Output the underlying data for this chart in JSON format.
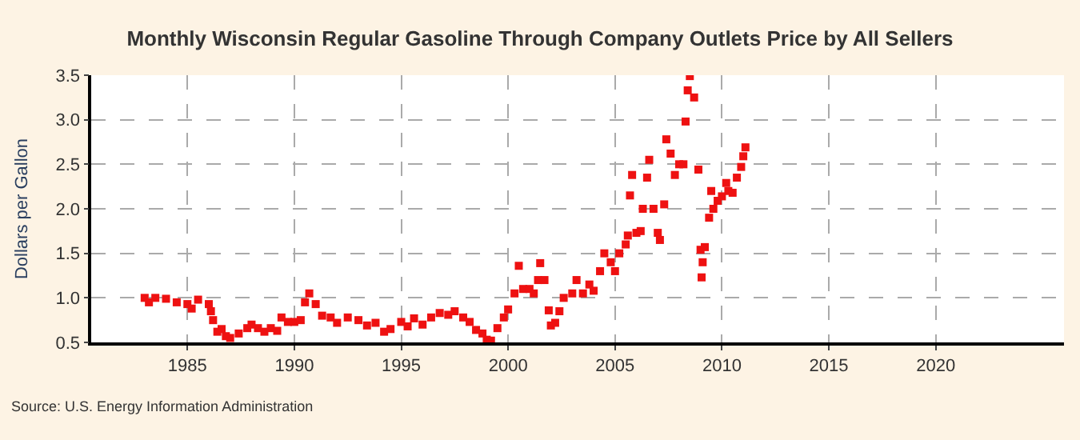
{
  "chart_data": {
    "type": "scatter",
    "title": "Monthly Wisconsin Regular Gasoline Through Company Outlets Price by All Sellers",
    "ylabel": "Dollars per Gallon",
    "annotations": [
      "Source: U.S. Energy Information Administration"
    ],
    "x": [
      1983.0,
      1983.2,
      1983.5,
      1984.0,
      1984.5,
      1985.0,
      1985.2,
      1985.5,
      1986.0,
      1986.1,
      1986.2,
      1986.4,
      1986.6,
      1986.8,
      1987.0,
      1987.4,
      1987.8,
      1988.0,
      1988.3,
      1988.6,
      1988.9,
      1989.2,
      1989.4,
      1989.7,
      1990.0,
      1990.3,
      1990.5,
      1990.7,
      1991.0,
      1991.3,
      1991.7,
      1992.0,
      1992.5,
      1993.0,
      1993.4,
      1993.8,
      1994.2,
      1994.5,
      1995.0,
      1995.3,
      1995.6,
      1996.0,
      1996.4,
      1996.8,
      1997.2,
      1997.5,
      1997.9,
      1998.2,
      1998.5,
      1998.8,
      1999.0,
      1999.2,
      1999.5,
      1999.8,
      2000.0,
      2000.3,
      2000.5,
      2000.7,
      2001.0,
      2001.2,
      2001.4,
      2001.5,
      2001.7,
      2001.9,
      2002.0,
      2002.2,
      2002.4,
      2002.6,
      2003.0,
      2003.2,
      2003.5,
      2003.8,
      2004.0,
      2004.3,
      2004.5,
      2004.8,
      2005.0,
      2005.2,
      2005.5,
      2005.6,
      2005.7,
      2005.8,
      2006.0,
      2006.2,
      2006.3,
      2006.5,
      2006.6,
      2006.8,
      2007.0,
      2007.1,
      2007.3,
      2007.4,
      2007.6,
      2007.8,
      2008.0,
      2008.2,
      2008.3,
      2008.4,
      2008.5,
      2008.7,
      2008.9,
      2009.0,
      2009.05,
      2009.1,
      2009.2,
      2009.4,
      2009.5,
      2009.6,
      2009.8,
      2010.0,
      2010.2,
      2010.3,
      2010.5,
      2010.7,
      2010.9,
      2011.0,
      2011.1
    ],
    "series": [
      {
        "color": "#ee1111",
        "values": [
          1.0,
          0.95,
          1.0,
          0.99,
          0.95,
          0.93,
          0.88,
          0.98,
          0.93,
          0.85,
          0.75,
          0.62,
          0.65,
          0.57,
          0.55,
          0.6,
          0.66,
          0.7,
          0.66,
          0.62,
          0.66,
          0.63,
          0.78,
          0.73,
          0.73,
          0.75,
          0.95,
          1.05,
          0.93,
          0.8,
          0.78,
          0.72,
          0.78,
          0.75,
          0.69,
          0.72,
          0.62,
          0.65,
          0.73,
          0.68,
          0.77,
          0.7,
          0.78,
          0.83,
          0.81,
          0.85,
          0.78,
          0.73,
          0.64,
          0.6,
          0.53,
          0.52,
          0.66,
          0.78,
          0.87,
          1.05,
          1.36,
          1.1,
          1.1,
          1.05,
          1.2,
          1.39,
          1.2,
          0.86,
          0.69,
          0.72,
          0.85,
          1.0,
          1.05,
          1.2,
          1.05,
          1.15,
          1.08,
          1.3,
          1.5,
          1.4,
          1.3,
          1.5,
          1.6,
          1.7,
          2.15,
          2.38,
          1.73,
          1.75,
          2.0,
          2.35,
          2.55,
          2.0,
          1.73,
          1.65,
          2.05,
          2.78,
          2.62,
          2.38,
          2.5,
          2.5,
          2.98,
          3.33,
          3.49,
          3.25,
          2.44,
          1.54,
          1.23,
          1.4,
          1.57,
          1.9,
          2.2,
          2.0,
          2.09,
          2.14,
          2.29,
          2.2,
          2.18,
          2.35,
          2.47,
          2.59,
          2.69
        ]
      }
    ],
    "xlim": [
      1980.5,
      2026
    ],
    "xticks": [
      1985,
      1990,
      1995,
      2000,
      2005,
      2010,
      2015,
      2020
    ],
    "ylim": [
      0.5,
      3.5
    ],
    "yticks": [
      {
        "value": 0.5,
        "label": "0.5"
      },
      {
        "value": 1.0,
        "label": "1.0"
      },
      {
        "value": 1.5,
        "label": "1.5"
      },
      {
        "value": 2.0,
        "label": "2.0"
      },
      {
        "value": 2.5,
        "label": "2.5"
      },
      {
        "value": 3.0,
        "label": "3.0"
      },
      {
        "value": 3.5,
        "label": "3.5"
      }
    ],
    "grid": true,
    "marker": "square"
  }
}
